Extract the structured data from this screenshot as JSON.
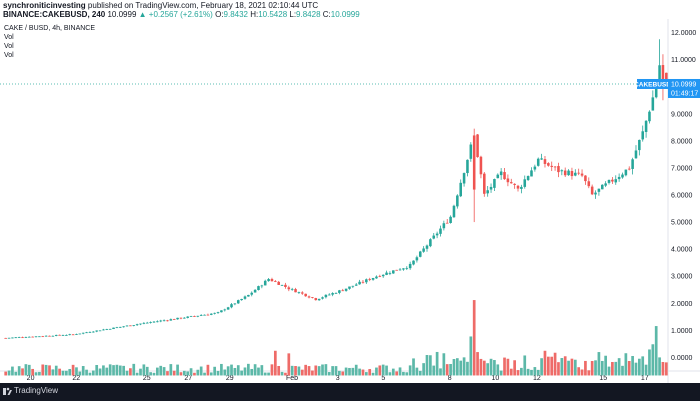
{
  "header": {
    "publisher": "synchroniticinvesting",
    "published_text": "published on TradingView.com, February 18, 2021 02:10:44 UTC",
    "symbol_line": "BINANCE:CAKEBUSD, 240",
    "last": "10.0999",
    "change": "▲ +0.2567 (+2.61%)",
    "ohlc_o": "9.8432",
    "ohlc_h": "10.5428",
    "ohlc_l": "9.8428",
    "ohlc_c": "10.0999"
  },
  "legend": {
    "title": "CAKE / BUSD, 4h, BINANCE",
    "vol1": "Vol",
    "vol2": "Vol",
    "vol3": "Vol"
  },
  "price_label": {
    "symbol": "CAKEBUSD",
    "value": "10.0999",
    "countdown": "01:49:17"
  },
  "footer": {
    "brand": "TradingView"
  },
  "colors": {
    "up": "#26a69a",
    "down": "#ef5350",
    "vol_up": "#5cb8a8",
    "vol_down": "#ee6b68",
    "price_line": "#26a69a",
    "label_bg": "#2196f3"
  },
  "chart_data": {
    "type": "candlestick",
    "title": "CAKE / BUSD, 4h, BINANCE",
    "x_tick_labels": [
      "20",
      "22",
      "25",
      "27",
      "29",
      "Feb",
      "3",
      "5",
      "8",
      "10",
      "12",
      "15",
      "17"
    ],
    "y_tick_labels": [
      "12.0000",
      "11.0000",
      "10.0000",
      "9.0000",
      "8.0000",
      "7.0000",
      "6.0000",
      "5.0000",
      "4.0000",
      "3.0000",
      "2.0000",
      "1.0000",
      "0.0000"
    ],
    "y_range": [
      -0.5,
      12.5
    ],
    "last_price": 10.0999,
    "segments": [
      {
        "from": 0,
        "to": 20,
        "close_start": 0.72,
        "close_end": 0.85
      },
      {
        "from": 20,
        "to": 40,
        "close_start": 0.85,
        "close_end": 1.25
      },
      {
        "from": 40,
        "to": 63,
        "close_start": 1.25,
        "close_end": 1.65
      },
      {
        "from": 63,
        "to": 72,
        "close_start": 1.65,
        "close_end": 2.3
      },
      {
        "from": 72,
        "to": 78,
        "close_start": 2.3,
        "close_end": 2.9
      },
      {
        "from": 78,
        "to": 84,
        "close_start": 2.9,
        "close_end": 2.55
      },
      {
        "from": 84,
        "to": 92,
        "close_start": 2.55,
        "close_end": 2.15
      },
      {
        "from": 92,
        "to": 100,
        "close_start": 2.15,
        "close_end": 2.5
      },
      {
        "from": 100,
        "to": 110,
        "close_start": 2.5,
        "close_end": 3.0
      },
      {
        "from": 110,
        "to": 120,
        "close_start": 3.0,
        "close_end": 3.4
      },
      {
        "from": 120,
        "to": 132,
        "close_start": 3.4,
        "close_end": 5.2
      },
      {
        "from": 132,
        "to": 139,
        "close_start": 5.2,
        "close_end": 8.2
      },
      {
        "from": 139,
        "to": 142,
        "close_start": 8.2,
        "close_end": 6.0
      },
      {
        "from": 142,
        "to": 147,
        "close_start": 6.0,
        "close_end": 6.8
      },
      {
        "from": 147,
        "to": 152,
        "close_start": 6.8,
        "close_end": 6.2
      },
      {
        "from": 152,
        "to": 158,
        "close_start": 6.2,
        "close_end": 7.3
      },
      {
        "from": 158,
        "to": 164,
        "close_start": 7.3,
        "close_end": 6.9
      },
      {
        "from": 164,
        "to": 171,
        "close_start": 6.9,
        "close_end": 6.7
      },
      {
        "from": 171,
        "to": 174,
        "close_start": 6.7,
        "close_end": 6.0
      },
      {
        "from": 174,
        "to": 185,
        "close_start": 6.0,
        "close_end": 7.0
      },
      {
        "from": 185,
        "to": 189,
        "close_start": 7.0,
        "close_end": 8.3
      },
      {
        "from": 189,
        "to": 192,
        "close_start": 8.3,
        "close_end": 9.6
      },
      {
        "from": 192,
        "to": 194,
        "close_start": 9.6,
        "close_end": 10.8
      },
      {
        "from": 194,
        "to": 196,
        "close_start": 10.8,
        "close_end": 10.0999
      }
    ],
    "volume_spikes": [
      {
        "at": 139,
        "value": 2.9
      },
      {
        "at": 138,
        "value": 1.5
      },
      {
        "at": 140,
        "value": 0.9
      },
      {
        "at": 193,
        "value": 1.9
      },
      {
        "at": 192,
        "value": 1.2
      },
      {
        "at": 191,
        "value": 1.0
      },
      {
        "at": 160,
        "value": 0.95
      },
      {
        "at": 176,
        "value": 0.9
      },
      {
        "at": 80,
        "value": 0.95
      },
      {
        "at": 84,
        "value": 0.85
      }
    ]
  }
}
